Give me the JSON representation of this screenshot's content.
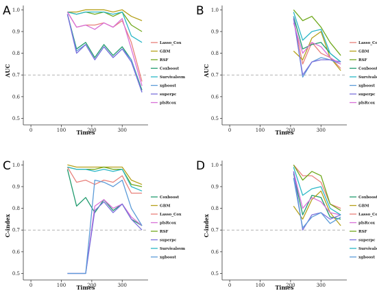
{
  "colors": {
    "Lasso_Cox": "#e8807a",
    "GBM": "#b5a019",
    "RSF": "#6fa81b",
    "Coxboost": "#1f9a6d",
    "Survivalsvm": "#2ab7c7",
    "xgboost": "#5b9bd8",
    "superpc": "#7a6fdc",
    "plsRcox": "#d86fd8"
  },
  "chart_data": [
    {
      "id": "A",
      "panel_letter": "A",
      "type": "line",
      "xlabel": "Times",
      "ylabel": "AUC",
      "xlim": [
        -25,
        385
      ],
      "ylim": [
        0.47,
        1.02
      ],
      "xticks": [
        0,
        100,
        200,
        300
      ],
      "yticks": [
        0.5,
        0.6,
        0.7,
        0.8,
        0.9,
        1.0
      ],
      "ytick_labels": [
        "0.5",
        "0.6",
        "0.7",
        "0.8",
        "0.9",
        "1.0"
      ],
      "reference_line": 0.7,
      "legend_position": "right",
      "legend_order": [
        "Lasso_Cox",
        "GBM",
        "RSF",
        "Coxboost",
        "Survivalsvm",
        "xgboost",
        "superpc",
        "plsRcox"
      ],
      "x": [
        120,
        150,
        180,
        210,
        240,
        270,
        300,
        330,
        365
      ],
      "series": [
        {
          "name": "Lasso_Cox",
          "values": [
            0.99,
            0.92,
            0.93,
            0.93,
            0.94,
            0.92,
            0.95,
            0.85,
            0.67
          ]
        },
        {
          "name": "GBM",
          "values": [
            0.99,
            0.99,
            1.0,
            1.0,
            1.0,
            0.99,
            1.0,
            0.97,
            0.95
          ]
        },
        {
          "name": "RSF",
          "values": [
            0.99,
            0.98,
            0.99,
            0.98,
            0.99,
            0.97,
            0.99,
            0.93,
            0.9
          ]
        },
        {
          "name": "Coxboost",
          "values": [
            0.98,
            0.82,
            0.85,
            0.78,
            0.84,
            0.79,
            0.83,
            0.77,
            0.63
          ]
        },
        {
          "name": "Survivalsvm",
          "values": [
            0.99,
            0.98,
            0.99,
            0.99,
            0.99,
            0.98,
            0.99,
            0.88,
            0.85
          ]
        },
        {
          "name": "xgboost",
          "values": [
            0.98,
            0.81,
            0.84,
            0.77,
            0.83,
            0.78,
            0.82,
            0.77,
            0.62
          ]
        },
        {
          "name": "superpc",
          "values": [
            0.98,
            0.8,
            0.84,
            0.77,
            0.83,
            0.78,
            0.82,
            0.76,
            0.62
          ]
        },
        {
          "name": "plsRcox",
          "values": [
            0.99,
            0.92,
            0.93,
            0.91,
            0.94,
            0.92,
            0.96,
            0.82,
            0.65
          ]
        }
      ]
    },
    {
      "id": "B",
      "panel_letter": "B",
      "type": "line",
      "xlabel": "Times",
      "ylabel": "AUC",
      "xlim": [
        -25,
        385
      ],
      "ylim": [
        0.47,
        1.02
      ],
      "xticks": [
        0,
        100,
        200,
        300
      ],
      "yticks": [
        0.5,
        0.6,
        0.7,
        0.8,
        0.9,
        1.0
      ],
      "ytick_labels": [
        "0.5",
        "0.6",
        "0.7",
        "0.8",
        "0.9",
        "1.0"
      ],
      "reference_line": 0.7,
      "legend_position": "right",
      "legend_order": [
        "Lasso_Cox",
        "GBM",
        "RSF",
        "Coxboost",
        "Survivalsvm",
        "xgboost",
        "superpc",
        "plsRcox"
      ],
      "x": [
        210,
        240,
        270,
        300,
        330,
        365
      ],
      "series": [
        {
          "name": "Lasso_Cox",
          "values": [
            0.96,
            0.75,
            0.85,
            0.8,
            0.78,
            0.73
          ]
        },
        {
          "name": "GBM",
          "values": [
            0.81,
            0.77,
            0.87,
            0.9,
            0.78,
            0.72
          ]
        },
        {
          "name": "RSF",
          "values": [
            1.0,
            0.95,
            0.97,
            0.92,
            0.85,
            0.79
          ]
        },
        {
          "name": "Coxboost",
          "values": [
            0.97,
            0.82,
            0.84,
            0.85,
            0.8,
            0.76
          ]
        },
        {
          "name": "Survivalsvm",
          "values": [
            0.99,
            0.86,
            0.9,
            0.91,
            0.8,
            0.76
          ]
        },
        {
          "name": "xgboost",
          "values": [
            0.97,
            0.69,
            0.76,
            0.78,
            0.77,
            0.75
          ]
        },
        {
          "name": "superpc",
          "values": [
            0.96,
            0.7,
            0.76,
            0.77,
            0.77,
            0.76
          ]
        },
        {
          "name": "plsRcox",
          "values": [
            0.94,
            0.8,
            0.85,
            0.83,
            0.78,
            0.75
          ]
        }
      ]
    },
    {
      "id": "C",
      "panel_letter": "C",
      "type": "line",
      "xlabel": "Times",
      "ylabel": "C-index",
      "xlim": [
        -25,
        385
      ],
      "ylim": [
        0.47,
        1.02
      ],
      "xticks": [
        0,
        100,
        200,
        300
      ],
      "yticks": [
        0.5,
        0.6,
        0.7,
        0.8,
        0.9,
        1.0
      ],
      "ytick_labels": [
        "0.5",
        "0.6",
        "0.7",
        "0.8",
        "0.9",
        "1.0"
      ],
      "reference_line": 0.7,
      "legend_position": "right",
      "legend_order": [
        "Coxboost",
        "GBM",
        "Lasso_Cox",
        "plsRcox",
        "RSF",
        "superpc",
        "Survivalsvm",
        "xgboost"
      ],
      "x": [
        120,
        150,
        180,
        210,
        240,
        270,
        300,
        330,
        365
      ],
      "series": [
        {
          "name": "Coxboost",
          "values": [
            0.98,
            0.81,
            0.85,
            0.78,
            0.84,
            0.79,
            0.82,
            0.75,
            0.72
          ]
        },
        {
          "name": "GBM",
          "values": [
            1.0,
            0.99,
            0.99,
            0.99,
            0.99,
            0.99,
            0.99,
            0.93,
            0.91
          ]
        },
        {
          "name": "Lasso_Cox",
          "values": [
            0.99,
            0.92,
            0.93,
            0.91,
            0.93,
            0.92,
            0.95,
            0.87,
            0.87
          ]
        },
        {
          "name": "plsRcox",
          "values": [
            0.5,
            0.5,
            0.5,
            0.81,
            0.84,
            0.8,
            0.82,
            0.76,
            0.72
          ]
        },
        {
          "name": "RSF",
          "values": [
            0.99,
            0.98,
            0.98,
            0.98,
            0.99,
            0.98,
            0.98,
            0.91,
            0.9
          ]
        },
        {
          "name": "superpc",
          "values": [
            0.5,
            0.5,
            0.5,
            0.79,
            0.83,
            0.78,
            0.82,
            0.75,
            0.7
          ]
        },
        {
          "name": "Survivalsvm",
          "values": [
            0.99,
            0.98,
            0.98,
            0.97,
            0.98,
            0.97,
            0.98,
            0.9,
            0.88
          ]
        },
        {
          "name": "xgboost",
          "values": [
            0.5,
            0.5,
            0.5,
            0.93,
            0.92,
            0.9,
            0.93,
            0.8,
            0.72
          ]
        }
      ]
    },
    {
      "id": "D",
      "panel_letter": "D",
      "type": "line",
      "xlabel": "Times",
      "ylabel": "C-index",
      "xlim": [
        -25,
        385
      ],
      "ylim": [
        0.47,
        1.02
      ],
      "xticks": [
        0,
        100,
        200,
        300
      ],
      "yticks": [
        0.5,
        0.6,
        0.7,
        0.8,
        0.9,
        1.0
      ],
      "ytick_labels": [
        "0.5",
        "0.6",
        "0.7",
        "0.8",
        "0.9",
        "1.0"
      ],
      "reference_line": 0.7,
      "legend_position": "right",
      "legend_order": [
        "Coxboost",
        "GBM",
        "Lasso_Cox",
        "plsRcox",
        "RSF",
        "superpc",
        "Survivalsvm",
        "xgboost"
      ],
      "x": [
        210,
        240,
        270,
        300,
        330,
        365
      ],
      "series": [
        {
          "name": "Coxboost",
          "values": [
            0.96,
            0.77,
            0.86,
            0.85,
            0.76,
            0.75
          ]
        },
        {
          "name": "GBM",
          "values": [
            0.81,
            0.75,
            0.84,
            0.88,
            0.78,
            0.72
          ]
        },
        {
          "name": "Lasso_Cox",
          "values": [
            1.0,
            0.95,
            0.95,
            0.92,
            0.82,
            0.8
          ]
        },
        {
          "name": "plsRcox",
          "values": [
            0.97,
            0.8,
            0.85,
            0.83,
            0.78,
            0.77
          ]
        },
        {
          "name": "RSF",
          "values": [
            1.0,
            0.93,
            0.97,
            0.95,
            0.82,
            0.79
          ]
        },
        {
          "name": "superpc",
          "values": [
            0.97,
            0.7,
            0.77,
            0.78,
            0.75,
            0.77
          ]
        },
        {
          "name": "Survivalsvm",
          "values": [
            0.99,
            0.86,
            0.89,
            0.9,
            0.8,
            0.77
          ]
        },
        {
          "name": "xgboost",
          "values": [
            0.94,
            0.71,
            0.76,
            0.78,
            0.73,
            0.76
          ]
        }
      ]
    }
  ]
}
